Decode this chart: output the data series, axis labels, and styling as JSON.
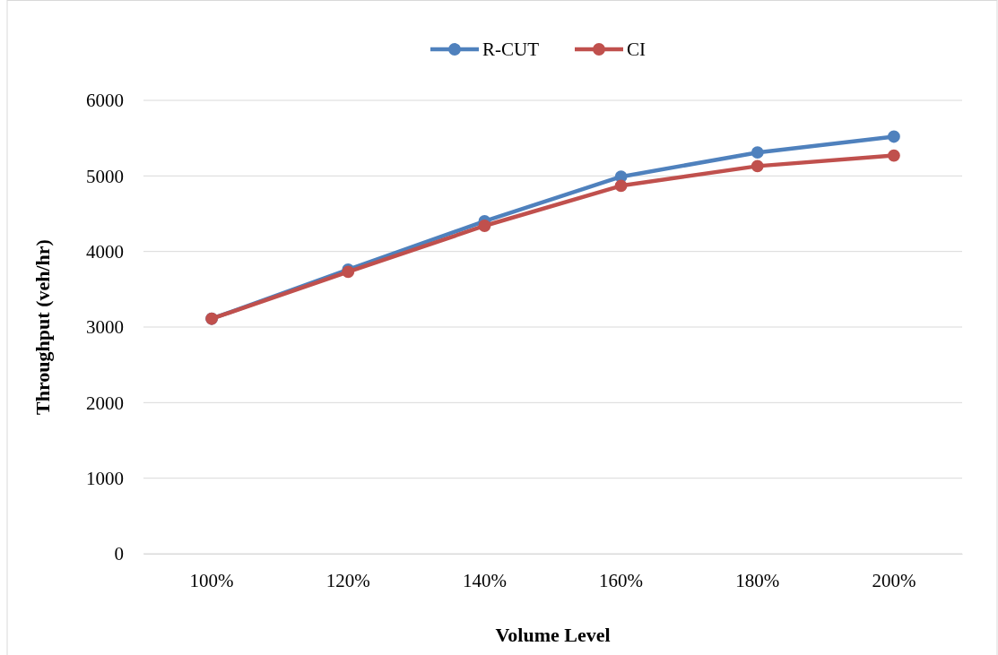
{
  "chart_data": {
    "type": "line",
    "xlabel": "Volume Level",
    "ylabel": "Throughput (veh/hr)",
    "categories": [
      "100%",
      "120%",
      "140%",
      "160%",
      "180%",
      "200%"
    ],
    "series": [
      {
        "name": "R-CUT",
        "color": "#4f81bd",
        "values": [
          3110,
          3760,
          4400,
          4990,
          5310,
          5520
        ]
      },
      {
        "name": "CI",
        "color": "#c0504d",
        "values": [
          3110,
          3730,
          4340,
          4870,
          5130,
          5270
        ]
      }
    ],
    "ylim": [
      0,
      6000
    ],
    "yticks": [
      0,
      1000,
      2000,
      3000,
      4000,
      5000,
      6000
    ],
    "grid": "y",
    "legend": "top",
    "marker": "circle",
    "line_style": "solid"
  }
}
